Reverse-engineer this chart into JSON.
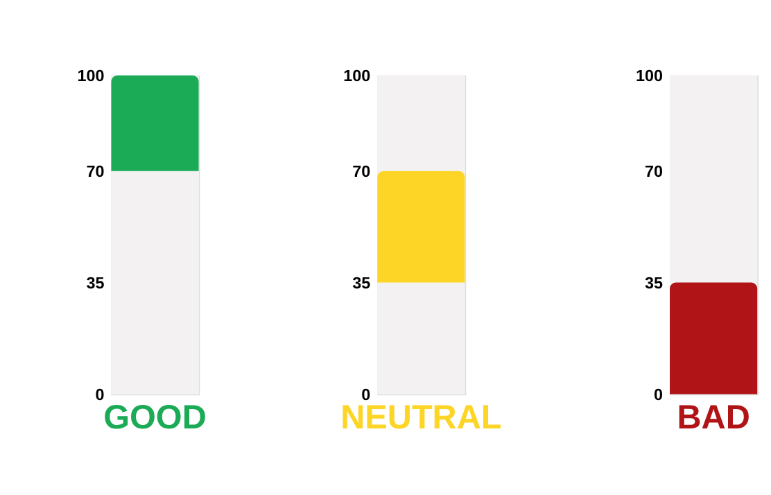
{
  "chart_data": [
    {
      "type": "bar",
      "categories": [
        "GOOD"
      ],
      "base": [
        70
      ],
      "values": [
        30
      ],
      "colors": [
        "#1bab56"
      ],
      "ylim": [
        0,
        100
      ],
      "yticks": [
        0,
        35,
        70,
        100
      ],
      "grid": false,
      "bands": [
        {
          "axis": "y",
          "from": 0,
          "to": 100,
          "color": "#f3f1f2"
        }
      ]
    },
    {
      "type": "bar",
      "categories": [
        "NEUTRAL"
      ],
      "base": [
        35
      ],
      "values": [
        35
      ],
      "colors": [
        "#fdd527"
      ],
      "ylim": [
        0,
        100
      ],
      "yticks": [
        0,
        35,
        70,
        100
      ],
      "grid": false,
      "bands": [
        {
          "axis": "y",
          "from": 0,
          "to": 100,
          "color": "#f3f1f2"
        }
      ]
    },
    {
      "type": "bar",
      "categories": [
        "BAD"
      ],
      "base": [
        0
      ],
      "values": [
        35
      ],
      "colors": [
        "#b01416"
      ],
      "ylim": [
        0,
        100
      ],
      "yticks": [
        0,
        35,
        70,
        100
      ],
      "grid": false,
      "bands": [
        {
          "axis": "y",
          "from": 0,
          "to": 100,
          "color": "#f3f1f2"
        }
      ]
    }
  ]
}
